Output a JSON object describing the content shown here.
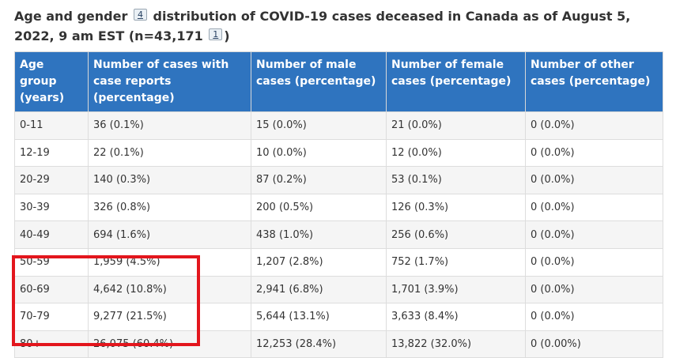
{
  "caption": {
    "part1": "Age and gender",
    "footnote_a": "4",
    "part2": "distribution of COVID-19 cases deceased in Canada as of August 5, 2022, 9 am EST (n=43,171",
    "footnote_b": "1",
    "part3": ")"
  },
  "table": {
    "headers": [
      "Age group (years)",
      "Number of cases with case reports (percentage)",
      "Number of male cases (percentage)",
      "Number of female cases (percentage)",
      "Number of other cases (percentage)"
    ],
    "rows": [
      [
        "0-11",
        "36 (0.1%)",
        "15 (0.0%)",
        "21 (0.0%)",
        "0 (0.0%)"
      ],
      [
        "12-19",
        "22 (0.1%)",
        "10 (0.0%)",
        "12 (0.0%)",
        "0 (0.0%)"
      ],
      [
        "20-29",
        "140 (0.3%)",
        "87 (0.2%)",
        "53 (0.1%)",
        "0 (0.0%)"
      ],
      [
        "30-39",
        "326 (0.8%)",
        "200 (0.5%)",
        "126 (0.3%)",
        "0 (0.0%)"
      ],
      [
        "40-49",
        "694 (1.6%)",
        "438 (1.0%)",
        "256 (0.6%)",
        "0 (0.0%)"
      ],
      [
        "50-59",
        "1,959 (4.5%)",
        "1,207 (2.8%)",
        "752 (1.7%)",
        "0 (0.0%)"
      ],
      [
        "60-69",
        "4,642 (10.8%)",
        "2,941 (6.8%)",
        "1,701 (3.9%)",
        "0 (0.0%)"
      ],
      [
        "70-79",
        "9,277 (21.5%)",
        "5,644 (13.1%)",
        "3,633 (8.4%)",
        "0 (0.0%)"
      ],
      [
        "80+",
        "26,075 (60.4%)",
        "12,253 (28.4%)",
        "13,822 (32.0%)",
        "0 (0.00%)"
      ]
    ]
  },
  "colors": {
    "header_bg": "#2f74bf",
    "highlight": "#e3161d"
  }
}
